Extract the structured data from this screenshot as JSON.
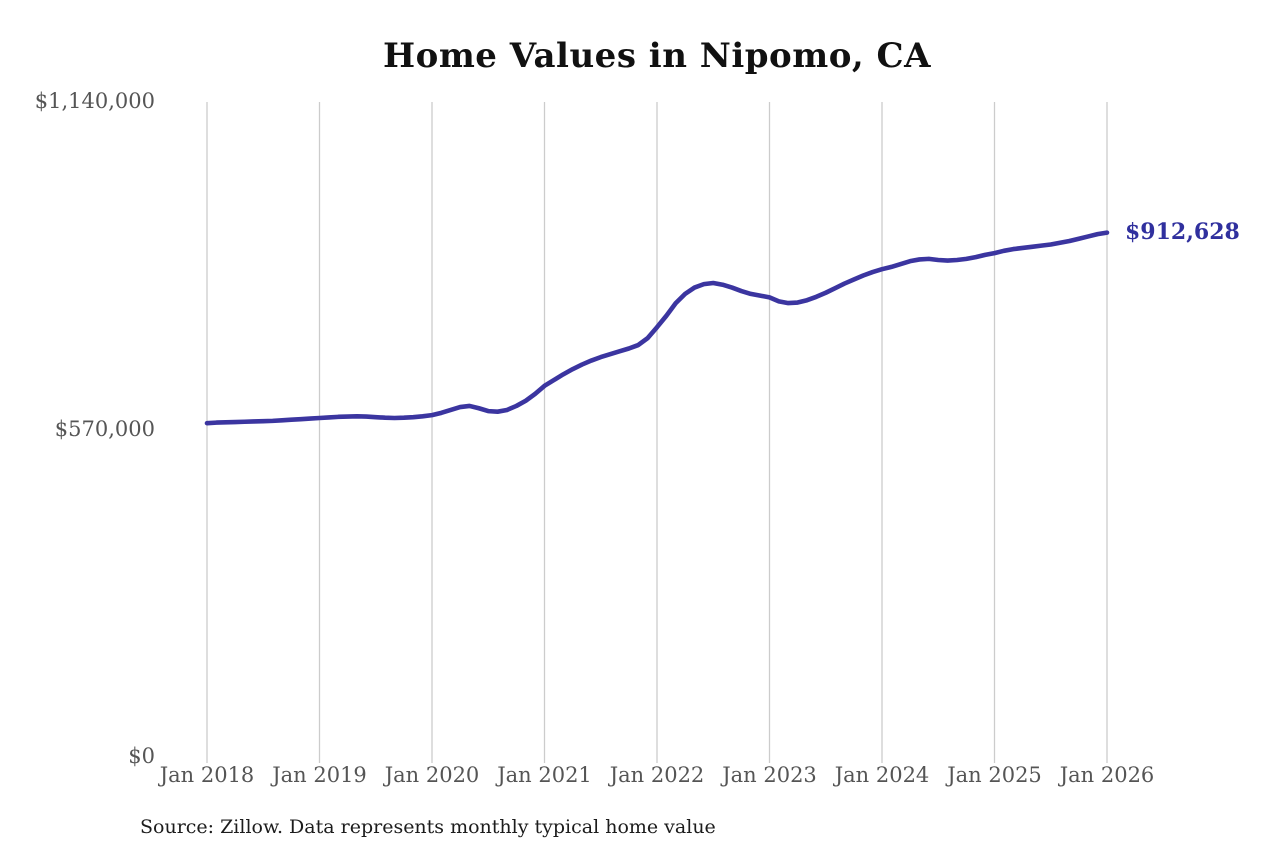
{
  "title": "Home Values in Nipomo, CA",
  "source_note": "Source: Zillow. Data represents monthly typical home value",
  "annotation": {
    "label": "$912,628"
  },
  "colors": {
    "line": "#3b35a0",
    "annotation": "#30309e",
    "grid": "#cccccc",
    "tick_text": "#555555",
    "title_text": "#111111",
    "source_text": "#1c1c1c",
    "background": "#ffffff"
  },
  "chart_data": {
    "type": "line",
    "title": "Home Values in Nipomo, CA",
    "xlabel": "",
    "ylabel": "",
    "x_unit": "month",
    "x_start": "Jan 2018",
    "x_end": "Jan 2026",
    "x_tick_labels": [
      "Jan 2018",
      "Jan 2019",
      "Jan 2020",
      "Jan 2021",
      "Jan 2022",
      "Jan 2023",
      "Jan 2024",
      "Jan 2025",
      "Jan 2026"
    ],
    "months_per_tick": 12,
    "y_ticks": [
      {
        "label": "$1,140,000",
        "value": 1140000
      },
      {
        "label": "$570,000",
        "value": 570000
      },
      {
        "label": "$0",
        "value": 0
      }
    ],
    "ylim": [
      0,
      1140000
    ],
    "grid": "vertical-only",
    "legend": false,
    "end_label": "$912,628",
    "series": [
      {
        "name": "Monthly typical home value",
        "values": [
          581000,
          582000,
          582500,
          583000,
          583500,
          584000,
          584500,
          585000,
          586000,
          587000,
          588000,
          589000,
          590000,
          591000,
          592000,
          592500,
          593000,
          592500,
          591500,
          590500,
          590000,
          590500,
          591500,
          593000,
          595000,
          599000,
          604000,
          609000,
          611000,
          607000,
          602000,
          601000,
          604000,
          611000,
          620000,
          632000,
          646000,
          656000,
          666000,
          675000,
          683000,
          690000,
          696000,
          701000,
          706000,
          711000,
          717000,
          729000,
          748000,
          768000,
          790000,
          806000,
          817000,
          823000,
          825000,
          822000,
          817000,
          811000,
          806000,
          803000,
          800000,
          793000,
          790000,
          791000,
          795000,
          801000,
          808000,
          816000,
          824000,
          831000,
          838000,
          844000,
          849000,
          853000,
          858000,
          863000,
          866000,
          867000,
          865000,
          864000,
          865000,
          867000,
          870000,
          874000,
          877000,
          881000,
          884000,
          886000,
          888000,
          890000,
          892000,
          895000,
          898000,
          902000,
          906000,
          910000,
          912628
        ]
      }
    ]
  }
}
